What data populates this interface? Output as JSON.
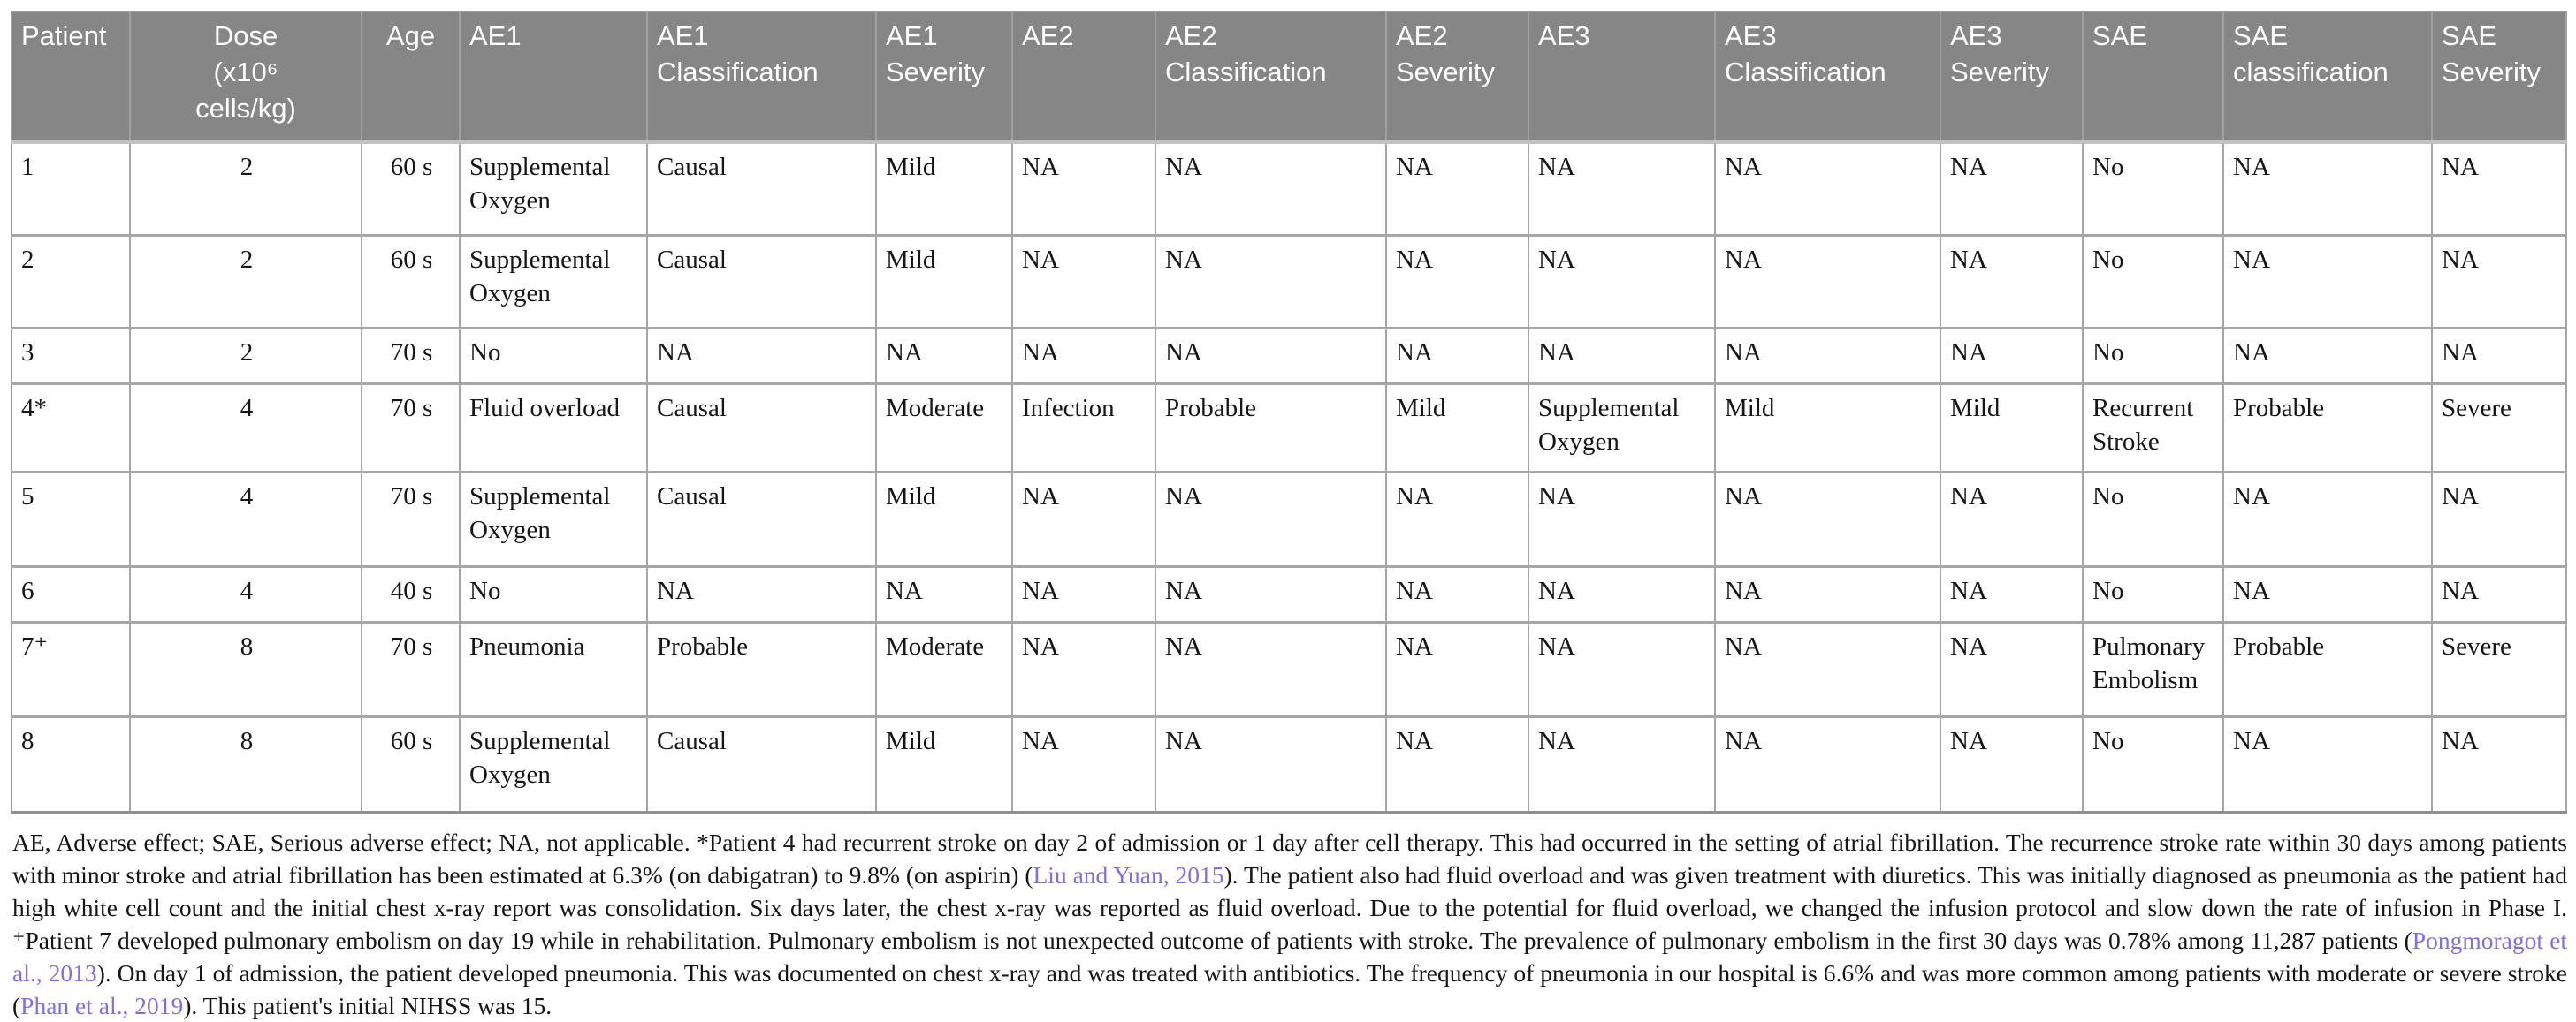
{
  "table": {
    "headers": [
      "Patient",
      "Dose\n(x10⁶\ncells/kg)",
      "Age",
      "AE1",
      "AE1\nClassification",
      "AE1\nSeverity",
      "AE2",
      "AE2\nClassification",
      "AE2\nSeverity",
      "AE3",
      "AE3\nClassification",
      "AE3\nSeverity",
      "SAE",
      "SAE\nclassification",
      "SAE\nSeverity"
    ],
    "rows": [
      [
        "1",
        "2",
        "60 s",
        "Supplemental Oxygen",
        "Causal",
        "Mild",
        "NA",
        "NA",
        "NA",
        "NA",
        "NA",
        "NA",
        "No",
        "NA",
        "NA"
      ],
      [
        "2",
        "2",
        "60 s",
        "Supplemental Oxygen",
        "Causal",
        "Mild",
        "NA",
        "NA",
        "NA",
        "NA",
        "NA",
        "NA",
        "No",
        "NA",
        "NA"
      ],
      [
        "3",
        "2",
        "70 s",
        "No",
        "NA",
        "NA",
        "NA",
        "NA",
        "NA",
        "NA",
        "NA",
        "NA",
        "No",
        "NA",
        "NA"
      ],
      [
        "4*",
        "4",
        "70 s",
        "Fluid overload",
        "Causal",
        "Moderate",
        "Infection",
        "Probable",
        "Mild",
        "Supplemental Oxygen",
        "Mild",
        "Mild",
        "Recurrent Stroke",
        "Probable",
        "Severe"
      ],
      [
        "5",
        "4",
        "70 s",
        "Supplemental Oxygen",
        "Causal",
        "Mild",
        "NA",
        "NA",
        "NA",
        "NA",
        "NA",
        "NA",
        "No",
        "NA",
        "NA"
      ],
      [
        "6",
        "4",
        "40 s",
        "No",
        "NA",
        "NA",
        "NA",
        "NA",
        "NA",
        "NA",
        "NA",
        "NA",
        "No",
        "NA",
        "NA"
      ],
      [
        "7⁺",
        "8",
        "70 s",
        "Pneumonia",
        "Probable",
        "Moderate",
        "NA",
        "NA",
        "NA",
        "NA",
        "NA",
        "NA",
        "Pulmonary Embolism",
        "Probable",
        "Severe"
      ],
      [
        "8",
        "8",
        "60 s",
        "Supplemental Oxygen",
        "Causal",
        "Mild",
        "NA",
        "NA",
        "NA",
        "NA",
        "NA",
        "NA",
        "No",
        "NA",
        "NA"
      ]
    ]
  },
  "footnote": {
    "segments": [
      {
        "text": "AE, Adverse effect; SAE, Serious adverse effect; NA, not applicable. *Patient 4 had recurrent stroke on day 2 of admission or 1 day after cell therapy. This had occurred in the setting of atrial fibrillation. The recurrence stroke rate within 30 days among patients with minor stroke and atrial fibrillation has been estimated at 6.3% (on dabigatran) to 9.8% (on aspirin) ("
      },
      {
        "text": "Liu and Yuan, 2015",
        "link": true
      },
      {
        "text": "). The patient also had fluid overload and was given treatment with diuretics. This was initially diagnosed as pneumonia as the patient had high white cell count and the initial chest x-ray report was consolidation. Six days later, the chest x-ray was reported as fluid overload. Due to the potential for fluid overload, we changed the infusion protocol and slow down the rate of infusion in Phase I. ⁺Patient 7 developed pulmonary embolism on day 19 while in rehabilitation. Pulmonary embolism is not unexpected outcome of patients with stroke. The prevalence of pulmonary embolism in the first 30 days was 0.78% among 11,287 patients ("
      },
      {
        "text": "Pongmoragot et al., 2013",
        "link": true
      },
      {
        "text": "). On day 1 of admission, the patient developed pneumonia. This was documented on chest x-ray and was treated with antibiotics. The frequency of pneumonia in our hospital is 6.6% and was more common among patients with moderate or severe stroke ("
      },
      {
        "text": "Phan et al., 2019",
        "link": true
      },
      {
        "text": "). This patient's initial NIHSS was 15."
      }
    ]
  },
  "colors": {
    "header_bg": "#868686",
    "grid": "#a6a6a6",
    "link": "#7e70e4"
  }
}
